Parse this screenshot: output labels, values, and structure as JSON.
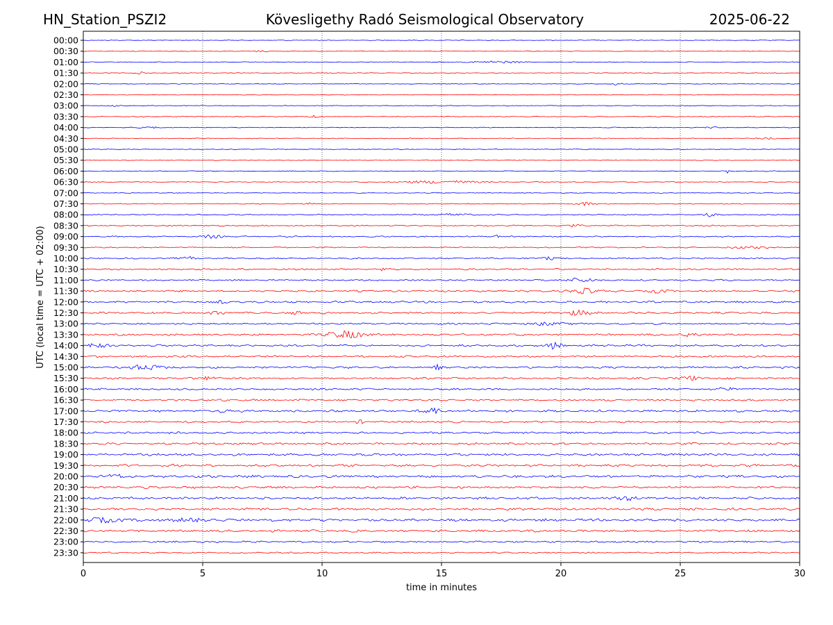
{
  "header": {
    "station": "HN_Station_PSZI2",
    "observatory": "Kövesligethy Radó Seismological Observatory",
    "date": "2025-06-22"
  },
  "chart_data": {
    "type": "line",
    "title": "Kövesligethy Radó Seismological Observatory",
    "xlabel": "time in minutes",
    "ylabel": "UTC (local time = UTC + 02:00)",
    "xlim": [
      0,
      30
    ],
    "x_ticks": [
      "0",
      "5",
      "10",
      "15",
      "20",
      "25",
      "30"
    ],
    "x_tick_values": [
      0,
      5,
      10,
      15,
      20,
      25,
      30
    ],
    "vertical_gridlines": [
      5,
      10,
      15,
      20,
      25
    ],
    "grid": "dotted vertical",
    "legend": "none",
    "trace_colors": [
      "#0000ff",
      "#ff0000"
    ],
    "row_labels": [
      "00:00",
      "00:30",
      "01:00",
      "01:30",
      "02:00",
      "02:30",
      "03:00",
      "03:30",
      "04:00",
      "04:30",
      "05:00",
      "05:30",
      "06:00",
      "06:30",
      "07:00",
      "07:30",
      "08:00",
      "08:30",
      "09:00",
      "09:30",
      "10:00",
      "10:30",
      "11:00",
      "11:30",
      "12:00",
      "12:30",
      "13:00",
      "13:30",
      "14:00",
      "14:30",
      "15:00",
      "15:30",
      "16:00",
      "16:30",
      "17:00",
      "17:30",
      "18:00",
      "18:30",
      "19:00",
      "19:30",
      "20:00",
      "20:30",
      "21:00",
      "21:30",
      "22:00",
      "22:30",
      "23:00",
      "23:30"
    ],
    "noise_level": [
      0.4,
      0.4,
      0.4,
      0.4,
      0.4,
      0.4,
      0.4,
      0.45,
      0.45,
      0.45,
      0.45,
      0.45,
      0.45,
      0.5,
      0.45,
      0.5,
      0.6,
      0.7,
      0.7,
      0.7,
      0.8,
      0.9,
      0.9,
      1.0,
      1.1,
      1.1,
      1.0,
      1.1,
      1.2,
      1.1,
      1.1,
      1.1,
      1.1,
      1.1,
      1.3,
      1.1,
      1.1,
      1.2,
      1.3,
      1.3,
      1.4,
      1.3,
      1.3,
      1.3,
      1.5,
      1.3,
      1.0,
      0.8
    ],
    "events": [
      {
        "row": 1,
        "t": 7.5,
        "amp": 1.0,
        "dur": 1.0
      },
      {
        "row": 2,
        "t": 17.3,
        "amp": 2.0,
        "dur": 1.8
      },
      {
        "row": 3,
        "t": 2.4,
        "amp": 2.5,
        "dur": 0.4
      },
      {
        "row": 4,
        "t": 22.3,
        "amp": 2.0,
        "dur": 0.4
      },
      {
        "row": 6,
        "t": 1.3,
        "amp": 1.5,
        "dur": 0.4
      },
      {
        "row": 7,
        "t": 9.7,
        "amp": 3.0,
        "dur": 0.5
      },
      {
        "row": 8,
        "t": 2.8,
        "amp": 1.5,
        "dur": 0.8
      },
      {
        "row": 8,
        "t": 26.3,
        "amp": 1.5,
        "dur": 0.5
      },
      {
        "row": 9,
        "t": 28.5,
        "amp": 1.5,
        "dur": 0.8
      },
      {
        "row": 12,
        "t": 27.0,
        "amp": 5.0,
        "dur": 0.1
      },
      {
        "row": 13,
        "t": 15.0,
        "amp": 2.5,
        "dur": 3.0
      },
      {
        "row": 15,
        "t": 9.5,
        "amp": 2.0,
        "dur": 0.4
      },
      {
        "row": 15,
        "t": 21.0,
        "amp": 3.0,
        "dur": 0.8
      },
      {
        "row": 16,
        "t": 15.5,
        "amp": 1.5,
        "dur": 2.0
      },
      {
        "row": 16,
        "t": 26.2,
        "amp": 3.5,
        "dur": 0.5
      },
      {
        "row": 17,
        "t": 20.5,
        "amp": 2.0,
        "dur": 0.6
      },
      {
        "row": 18,
        "t": 5.4,
        "amp": 3.0,
        "dur": 0.8
      },
      {
        "row": 18,
        "t": 17.3,
        "amp": 2.0,
        "dur": 0.4
      },
      {
        "row": 19,
        "t": 27.8,
        "amp": 2.0,
        "dur": 1.5
      },
      {
        "row": 20,
        "t": 4.4,
        "amp": 2.5,
        "dur": 0.6
      },
      {
        "row": 20,
        "t": 19.5,
        "amp": 2.5,
        "dur": 0.5
      },
      {
        "row": 21,
        "t": 12.6,
        "amp": 2.0,
        "dur": 0.4
      },
      {
        "row": 22,
        "t": 20.8,
        "amp": 3.5,
        "dur": 1.2
      },
      {
        "row": 23,
        "t": 21.0,
        "amp": 4.0,
        "dur": 1.3
      },
      {
        "row": 23,
        "t": 24.0,
        "amp": 3.0,
        "dur": 0.8
      },
      {
        "row": 24,
        "t": 5.8,
        "amp": 2.0,
        "dur": 0.5
      },
      {
        "row": 25,
        "t": 5.6,
        "amp": 3.5,
        "dur": 0.6
      },
      {
        "row": 25,
        "t": 8.9,
        "amp": 2.0,
        "dur": 0.5
      },
      {
        "row": 25,
        "t": 20.7,
        "amp": 4.0,
        "dur": 1.0
      },
      {
        "row": 26,
        "t": 19.5,
        "amp": 2.5,
        "dur": 1.2
      },
      {
        "row": 27,
        "t": 11.0,
        "amp": 5.5,
        "dur": 1.8
      },
      {
        "row": 27,
        "t": 25.5,
        "amp": 2.5,
        "dur": 0.8
      },
      {
        "row": 28,
        "t": 0.5,
        "amp": 3.5,
        "dur": 0.8
      },
      {
        "row": 28,
        "t": 19.7,
        "amp": 5.0,
        "dur": 0.6
      },
      {
        "row": 30,
        "t": 2.6,
        "amp": 4.0,
        "dur": 1.5
      },
      {
        "row": 30,
        "t": 14.8,
        "amp": 4.0,
        "dur": 0.4
      },
      {
        "row": 31,
        "t": 5.4,
        "amp": 3.0,
        "dur": 0.7
      },
      {
        "row": 31,
        "t": 25.4,
        "amp": 3.5,
        "dur": 0.8
      },
      {
        "row": 32,
        "t": 27.0,
        "amp": 2.5,
        "dur": 0.8
      },
      {
        "row": 34,
        "t": 14.7,
        "amp": 5.0,
        "dur": 0.8
      },
      {
        "row": 34,
        "t": 5.8,
        "amp": 2.5,
        "dur": 0.6
      },
      {
        "row": 35,
        "t": 11.6,
        "amp": 2.5,
        "dur": 0.4
      },
      {
        "row": 40,
        "t": 1.3,
        "amp": 3.0,
        "dur": 1.0
      },
      {
        "row": 42,
        "t": 22.8,
        "amp": 3.0,
        "dur": 1.2
      },
      {
        "row": 44,
        "t": 0.8,
        "amp": 3.0,
        "dur": 2.0
      },
      {
        "row": 44,
        "t": 4.5,
        "amp": 2.5,
        "dur": 2.0
      }
    ]
  }
}
